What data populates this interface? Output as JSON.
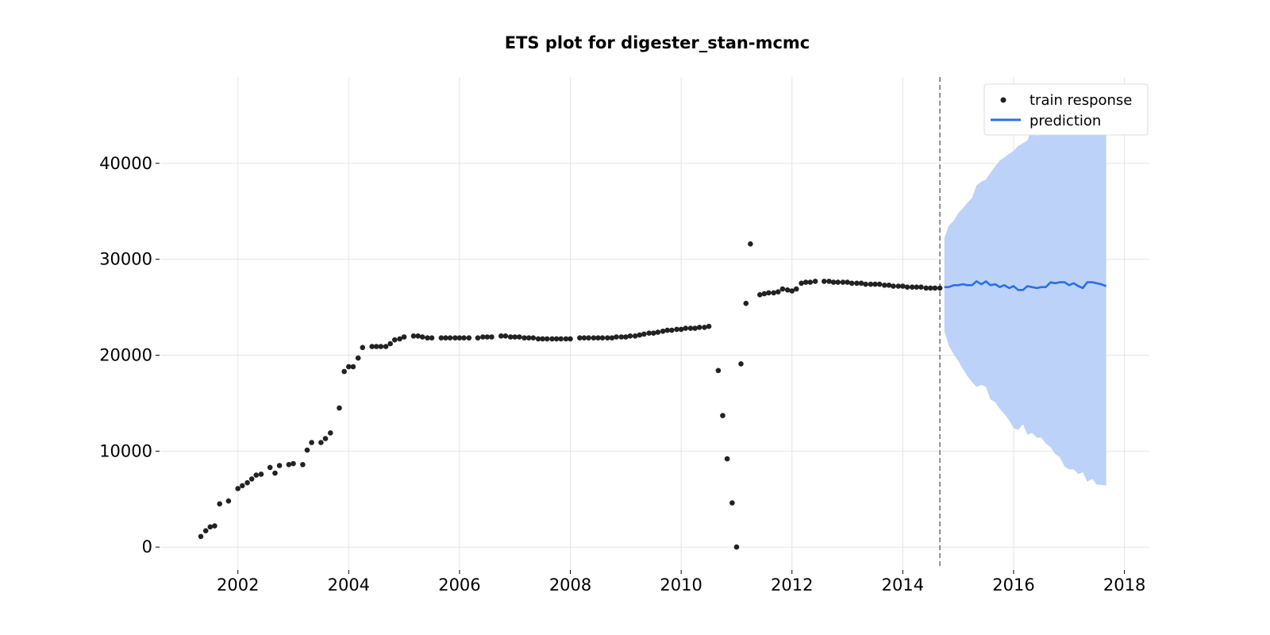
{
  "chart_data": {
    "type": "line",
    "title": "ETS plot for digester_stan-mcmc",
    "xlabel": "",
    "ylabel": "",
    "xlim": [
      2000.6,
      2018.45
    ],
    "ylim": [
      -2300,
      49000
    ],
    "x_ticks": [
      2002,
      2004,
      2006,
      2008,
      2010,
      2012,
      2014,
      2016,
      2018
    ],
    "y_ticks": [
      0,
      10000,
      20000,
      30000,
      40000
    ],
    "grid": true,
    "legend": {
      "placement": "top-right",
      "entries": [
        "train response",
        "prediction"
      ]
    },
    "forecast_start": 2014.67,
    "colors": {
      "train": "#222222",
      "prediction": "#2a6fe6",
      "interval": "#bcd2f8",
      "divider": "#777777",
      "grid": "#e6e6e6"
    },
    "series": [
      {
        "name": "train response",
        "kind": "scatter",
        "points": [
          [
            2001.33,
            1100
          ],
          [
            2001.42,
            1700
          ],
          [
            2001.5,
            2100
          ],
          [
            2001.58,
            2200
          ],
          [
            2001.67,
            4500
          ],
          [
            2001.83,
            4800
          ],
          [
            2002.0,
            6100
          ],
          [
            2002.08,
            6400
          ],
          [
            2002.17,
            6700
          ],
          [
            2002.25,
            7100
          ],
          [
            2002.33,
            7500
          ],
          [
            2002.42,
            7600
          ],
          [
            2002.58,
            8300
          ],
          [
            2002.67,
            7700
          ],
          [
            2002.75,
            8500
          ],
          [
            2002.92,
            8600
          ],
          [
            2003.0,
            8700
          ],
          [
            2003.17,
            8600
          ],
          [
            2003.25,
            10100
          ],
          [
            2003.33,
            10900
          ],
          [
            2003.5,
            10900
          ],
          [
            2003.58,
            11300
          ],
          [
            2003.67,
            11900
          ],
          [
            2003.83,
            14500
          ],
          [
            2003.92,
            18300
          ],
          [
            2004.0,
            18800
          ],
          [
            2004.08,
            18800
          ],
          [
            2004.17,
            19700
          ],
          [
            2004.25,
            20800
          ],
          [
            2004.42,
            20900
          ],
          [
            2004.5,
            20900
          ],
          [
            2004.58,
            20900
          ],
          [
            2004.67,
            20900
          ],
          [
            2004.75,
            21200
          ],
          [
            2004.83,
            21600
          ],
          [
            2004.92,
            21700
          ],
          [
            2005.0,
            21900
          ],
          [
            2005.17,
            22000
          ],
          [
            2005.25,
            22000
          ],
          [
            2005.33,
            21900
          ],
          [
            2005.42,
            21800
          ],
          [
            2005.5,
            21800
          ],
          [
            2005.67,
            21800
          ],
          [
            2005.75,
            21800
          ],
          [
            2005.83,
            21800
          ],
          [
            2005.92,
            21800
          ],
          [
            2006.0,
            21800
          ],
          [
            2006.08,
            21800
          ],
          [
            2006.17,
            21800
          ],
          [
            2006.33,
            21800
          ],
          [
            2006.42,
            21900
          ],
          [
            2006.5,
            21900
          ],
          [
            2006.58,
            21900
          ],
          [
            2006.75,
            22000
          ],
          [
            2006.83,
            22000
          ],
          [
            2006.92,
            21900
          ],
          [
            2007.0,
            21900
          ],
          [
            2007.08,
            21900
          ],
          [
            2007.17,
            21800
          ],
          [
            2007.25,
            21800
          ],
          [
            2007.33,
            21800
          ],
          [
            2007.42,
            21700
          ],
          [
            2007.5,
            21700
          ],
          [
            2007.58,
            21700
          ],
          [
            2007.67,
            21700
          ],
          [
            2007.75,
            21700
          ],
          [
            2007.83,
            21700
          ],
          [
            2007.92,
            21700
          ],
          [
            2008.0,
            21700
          ],
          [
            2008.17,
            21800
          ],
          [
            2008.25,
            21800
          ],
          [
            2008.33,
            21800
          ],
          [
            2008.42,
            21800
          ],
          [
            2008.5,
            21800
          ],
          [
            2008.58,
            21800
          ],
          [
            2008.67,
            21800
          ],
          [
            2008.75,
            21800
          ],
          [
            2008.83,
            21900
          ],
          [
            2008.92,
            21900
          ],
          [
            2009.0,
            21900
          ],
          [
            2009.08,
            22000
          ],
          [
            2009.17,
            22000
          ],
          [
            2009.25,
            22100
          ],
          [
            2009.33,
            22200
          ],
          [
            2009.42,
            22300
          ],
          [
            2009.5,
            22300
          ],
          [
            2009.58,
            22400
          ],
          [
            2009.67,
            22500
          ],
          [
            2009.75,
            22600
          ],
          [
            2009.83,
            22600
          ],
          [
            2009.92,
            22700
          ],
          [
            2010.0,
            22700
          ],
          [
            2010.08,
            22800
          ],
          [
            2010.17,
            22800
          ],
          [
            2010.25,
            22800
          ],
          [
            2010.33,
            22900
          ],
          [
            2010.42,
            22900
          ],
          [
            2010.5,
            23000
          ],
          [
            2010.67,
            18400
          ],
          [
            2010.75,
            13700
          ],
          [
            2010.83,
            9200
          ],
          [
            2010.92,
            4600
          ],
          [
            2011.0,
            0
          ],
          [
            2011.08,
            19100
          ],
          [
            2011.17,
            25400
          ],
          [
            2011.25,
            31600
          ],
          [
            2011.42,
            26300
          ],
          [
            2011.5,
            26400
          ],
          [
            2011.58,
            26500
          ],
          [
            2011.67,
            26500
          ],
          [
            2011.75,
            26600
          ],
          [
            2011.83,
            26900
          ],
          [
            2011.92,
            26800
          ],
          [
            2012.0,
            26700
          ],
          [
            2012.08,
            26900
          ],
          [
            2012.17,
            27500
          ],
          [
            2012.25,
            27600
          ],
          [
            2012.33,
            27600
          ],
          [
            2012.42,
            27700
          ],
          [
            2012.58,
            27700
          ],
          [
            2012.67,
            27700
          ],
          [
            2012.75,
            27600
          ],
          [
            2012.83,
            27600
          ],
          [
            2012.92,
            27600
          ],
          [
            2013.0,
            27600
          ],
          [
            2013.08,
            27500
          ],
          [
            2013.17,
            27500
          ],
          [
            2013.25,
            27500
          ],
          [
            2013.33,
            27400
          ],
          [
            2013.42,
            27400
          ],
          [
            2013.5,
            27400
          ],
          [
            2013.58,
            27400
          ],
          [
            2013.67,
            27300
          ],
          [
            2013.75,
            27300
          ],
          [
            2013.83,
            27200
          ],
          [
            2013.92,
            27200
          ],
          [
            2014.0,
            27200
          ],
          [
            2014.08,
            27100
          ],
          [
            2014.17,
            27100
          ],
          [
            2014.25,
            27100
          ],
          [
            2014.33,
            27100
          ],
          [
            2014.42,
            27000
          ],
          [
            2014.5,
            27000
          ],
          [
            2014.58,
            27000
          ],
          [
            2014.67,
            27000
          ]
        ]
      },
      {
        "name": "prediction",
        "kind": "line",
        "points": [
          [
            2014.75,
            27100
          ],
          [
            2014.83,
            27100
          ],
          [
            2014.92,
            27300
          ],
          [
            2015.0,
            27300
          ],
          [
            2015.08,
            27400
          ],
          [
            2015.17,
            27300
          ],
          [
            2015.25,
            27300
          ],
          [
            2015.33,
            27700
          ],
          [
            2015.42,
            27400
          ],
          [
            2015.5,
            27700
          ],
          [
            2015.58,
            27300
          ],
          [
            2015.67,
            27400
          ],
          [
            2015.75,
            27100
          ],
          [
            2015.83,
            27300
          ],
          [
            2015.92,
            27000
          ],
          [
            2016.0,
            27200
          ],
          [
            2016.08,
            26800
          ],
          [
            2016.17,
            26800
          ],
          [
            2016.25,
            27200
          ],
          [
            2016.33,
            27100
          ],
          [
            2016.42,
            27000
          ],
          [
            2016.5,
            27100
          ],
          [
            2016.58,
            27100
          ],
          [
            2016.67,
            27600
          ],
          [
            2016.75,
            27500
          ],
          [
            2016.83,
            27600
          ],
          [
            2016.92,
            27600
          ],
          [
            2017.0,
            27300
          ],
          [
            2017.08,
            27500
          ],
          [
            2017.17,
            27200
          ],
          [
            2017.25,
            27000
          ],
          [
            2017.33,
            27600
          ],
          [
            2017.42,
            27600
          ],
          [
            2017.5,
            27500
          ],
          [
            2017.58,
            27400
          ],
          [
            2017.67,
            27200
          ]
        ]
      }
    ],
    "interval": {
      "x": [
        2014.75,
        2014.83,
        2014.92,
        2015.0,
        2015.08,
        2015.17,
        2015.25,
        2015.33,
        2015.42,
        2015.5,
        2015.58,
        2015.67,
        2015.75,
        2015.83,
        2015.92,
        2016.0,
        2016.08,
        2016.17,
        2016.25,
        2016.33,
        2016.42,
        2016.5,
        2016.58,
        2016.67,
        2016.75,
        2016.83,
        2016.92,
        2017.0,
        2017.08,
        2017.17,
        2017.25,
        2017.33,
        2017.42,
        2017.5,
        2017.58,
        2017.67
      ],
      "upper": [
        32200,
        33500,
        34000,
        34800,
        35300,
        35900,
        36400,
        37700,
        38100,
        38300,
        39000,
        39700,
        40300,
        40600,
        41000,
        41300,
        41800,
        42100,
        42400,
        43600,
        42800,
        43600,
        43800,
        44000,
        44300,
        44600,
        45000,
        44900,
        45200,
        45000,
        45300,
        45400,
        45700,
        46300,
        46800,
        47500
      ],
      "lower": [
        22500,
        21000,
        20100,
        19400,
        18600,
        17800,
        17200,
        16700,
        16900,
        16700,
        15400,
        15100,
        14400,
        13900,
        13200,
        12400,
        12200,
        12800,
        11700,
        11900,
        11400,
        11400,
        10800,
        10400,
        9700,
        9400,
        8400,
        8100,
        8100,
        7600,
        7800,
        6800,
        7100,
        6500,
        6500,
        6400
      ]
    }
  }
}
